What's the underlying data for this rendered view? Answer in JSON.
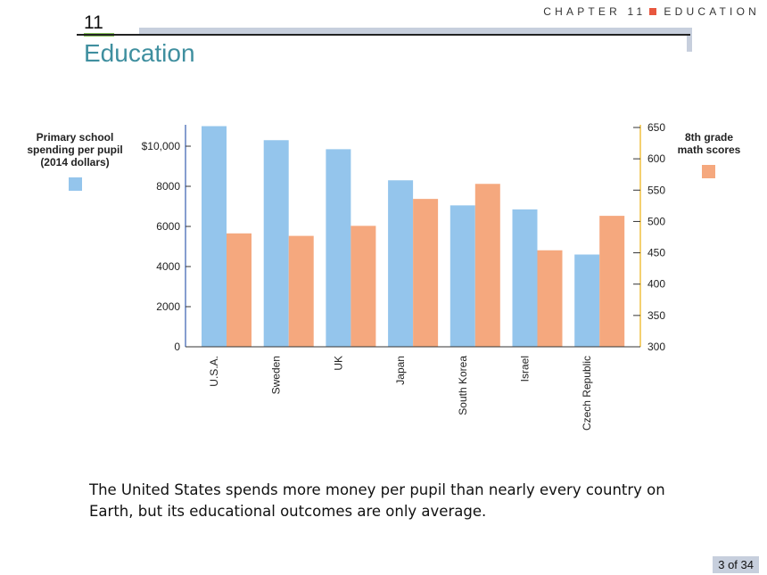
{
  "header": {
    "chapter_label": "CHAPTER 11",
    "subject_label": "EDUCATION",
    "chapter_number": "11",
    "title": "Education"
  },
  "colors": {
    "spending": "#94c5ec",
    "math": "#f5a87e",
    "left_axis": "#5f7fbf",
    "right_axis": "#f0c040",
    "title": "#3f8f9f",
    "accent_square": "#e8573f"
  },
  "chart_data": {
    "type": "bar",
    "categories": [
      "U.S.A.",
      "Sweden",
      "UK",
      "Japan",
      "South Korea",
      "Israel",
      "Czech Republic"
    ],
    "series": [
      {
        "name": "Primary school spending per pupil (2014 dollars)",
        "axis": "left",
        "values": [
          11000,
          10300,
          9850,
          8300,
          7050,
          6850,
          4600
        ]
      },
      {
        "name": "8th grade math scores",
        "axis": "right",
        "values": [
          481,
          477,
          493,
          536,
          560,
          454,
          509
        ]
      }
    ],
    "left_axis": {
      "label_lines": [
        "Primary school",
        "spending per pupil",
        "(2014 dollars)"
      ],
      "ylim": [
        0,
        11000
      ],
      "ticks": [
        0,
        2000,
        4000,
        6000,
        8000,
        10000
      ],
      "tick_labels": [
        "0",
        "2000",
        "4000",
        "6000",
        "8000",
        "$10,000"
      ]
    },
    "right_axis": {
      "label_lines": [
        "8th grade",
        "math scores"
      ],
      "ylim": [
        300,
        650
      ],
      "ticks": [
        300,
        350,
        400,
        450,
        500,
        550,
        600,
        650
      ],
      "tick_labels": [
        "300",
        "350",
        "400",
        "450",
        "500",
        "550",
        "600",
        "650"
      ]
    },
    "grid": false
  },
  "caption": "The United States spends more money per pupil than nearly every country on Earth, but its educational outcomes are only average.",
  "page_indicator": "3 of 34"
}
